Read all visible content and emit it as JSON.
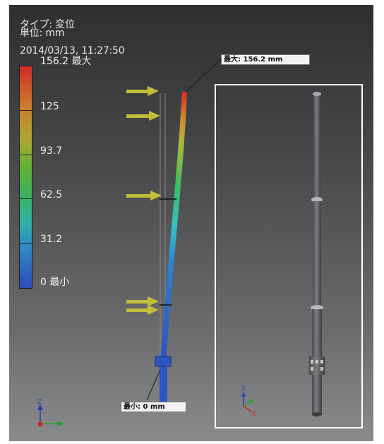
{
  "header": {
    "type_line": "タイプ: 変位",
    "unit_line": "単位: mm",
    "timestamp": "2014/03/13, 11:27:50"
  },
  "legend": {
    "max_label": "156.2 最大",
    "labels": [
      "125",
      "93.7",
      "62.5",
      "31.2"
    ],
    "min_label": "0 最小"
  },
  "callouts": {
    "max": "最大: 156.2 mm",
    "min": "最小: 0 mm"
  },
  "colors": {
    "arrow": "#c2be3a",
    "inset_border": "#ffffff"
  }
}
